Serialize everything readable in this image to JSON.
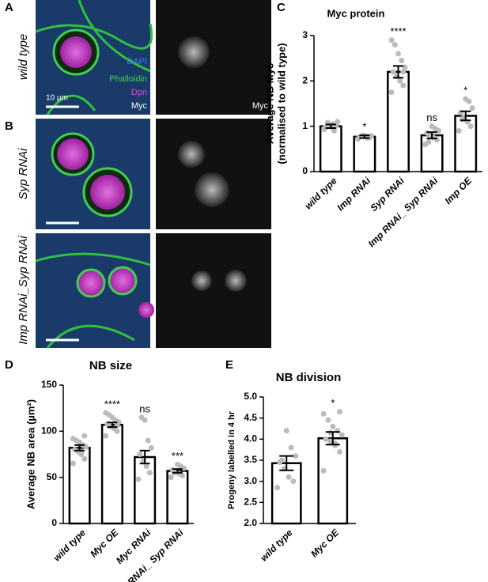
{
  "panels": {
    "a": "A",
    "b": "B",
    "c": "C",
    "d": "D",
    "e": "E"
  },
  "images": {
    "row_a": "wild type",
    "row_b1": "Syp RNAi",
    "row_b2": "Imp RNAi_Syp RNAi",
    "dapi": "DAPI",
    "phalloidin": "Phalloidin",
    "dpn": "Dpn",
    "myc_left": "Myc",
    "myc_right": "Myc",
    "scale": "10 µm"
  },
  "chart_data": [
    {
      "type": "bar",
      "title": "Myc protein",
      "ylabel": [
        "Average NB Myc",
        "(normalised to wild type)"
      ],
      "categories": [
        "wild type",
        "Imp RNAi",
        "Syp RNAi",
        "Imp RNAi_ Syp RNAi",
        "Imp OE"
      ],
      "values": [
        1.0,
        0.77,
        2.2,
        0.8,
        1.23
      ],
      "errors": [
        0.04,
        0.03,
        0.13,
        0.07,
        0.1
      ],
      "significance": [
        null,
        "*",
        "****",
        "ns",
        "*"
      ],
      "points": [
        [
          0.95,
          1.0,
          1.05,
          1.02,
          0.98,
          1.1,
          0.9,
          1.0,
          1.08,
          0.93,
          1.03,
          0.97
        ],
        [
          0.72,
          0.75,
          0.78,
          0.8,
          0.76,
          0.79,
          0.74,
          0.77
        ],
        [
          1.75,
          1.9,
          2.0,
          2.1,
          2.2,
          2.3,
          2.45,
          2.6,
          2.8,
          2.9,
          2.2
        ],
        [
          0.6,
          0.7,
          0.75,
          0.8,
          0.85,
          0.9,
          0.95,
          1.0,
          0.65
        ],
        [
          0.9,
          1.0,
          1.1,
          1.2,
          1.3,
          1.4,
          1.55,
          1.6,
          1.15
        ]
      ],
      "ylim": [
        0,
        3
      ],
      "yticks": [
        0,
        1,
        2,
        3
      ],
      "color": "#ffffff",
      "point_color": "#bbbbbb"
    },
    {
      "type": "bar",
      "title": "NB size",
      "ylabel": [
        "Average NB area (µm²)"
      ],
      "categories": [
        "wild type",
        "Myc OE",
        "Myc RNAi",
        "Myc RNAi_ Syp RNAi"
      ],
      "values": [
        82,
        107,
        72,
        57
      ],
      "errors": [
        3,
        2.5,
        7,
        2
      ],
      "significance": [
        null,
        "****",
        "ns",
        "***"
      ],
      "points": [
        [
          65,
          70,
          75,
          78,
          80,
          83,
          85,
          88,
          90,
          92,
          95,
          78
        ],
        [
          95,
          100,
          103,
          105,
          108,
          110,
          112,
          115,
          118,
          120,
          106
        ],
        [
          48,
          55,
          62,
          68,
          75,
          82,
          90,
          112,
          115
        ],
        [
          50,
          52,
          54,
          56,
          58,
          60,
          62,
          64,
          55
        ]
      ],
      "ylim": [
        0,
        150
      ],
      "yticks": [
        0,
        50,
        100,
        150
      ],
      "color": "#ffffff",
      "point_color": "#bbbbbb"
    },
    {
      "type": "bar",
      "title": "NB division",
      "ylabel": [
        "Progeny labelled in 4 hr"
      ],
      "categories": [
        "wild type",
        "Myc OE"
      ],
      "values": [
        3.43,
        4.02
      ],
      "errors": [
        0.17,
        0.15
      ],
      "significance": [
        null,
        "*"
      ],
      "points": [
        [
          2.85,
          3.0,
          3.1,
          3.3,
          3.45,
          3.6,
          3.8,
          4.2,
          3.5
        ],
        [
          3.25,
          3.7,
          3.85,
          3.95,
          4.0,
          4.1,
          4.2,
          4.3,
          4.45,
          4.6,
          4.65,
          3.9,
          4.15
        ]
      ],
      "ylim": [
        2,
        5
      ],
      "yticks": [
        {
          "value": 2,
          "label": "2.0"
        },
        2.5,
        {
          "value": 3,
          "label": "3.0"
        },
        3.5,
        {
          "value": 4,
          "label": "4.0"
        },
        4.5,
        {
          "value": 5,
          "label": "5.0"
        }
      ],
      "color": "#ffffff",
      "point_color": "#bbbbbb"
    }
  ]
}
